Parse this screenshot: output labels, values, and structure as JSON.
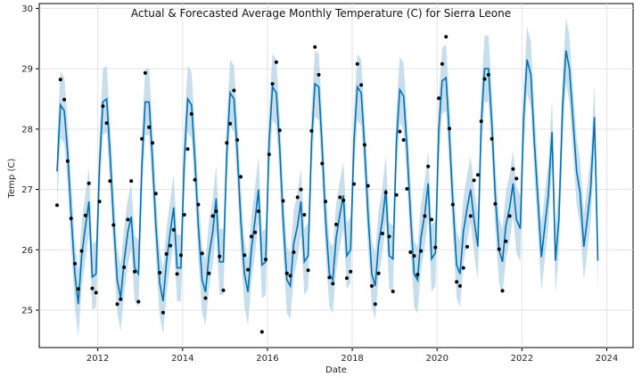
{
  "chart_data": {
    "type": "line",
    "title": "Actual & Forecasted Average Monthly Temperature (C) for Sierra Leone",
    "xlabel": "Date",
    "ylabel": "Temp (C)",
    "xlim": [
      2010.62,
      2024.62
    ],
    "ylim": [
      24.38,
      30.08
    ],
    "x_ticks": [
      2012,
      2014,
      2016,
      2018,
      2020,
      2022,
      2024
    ],
    "y_ticks": [
      25,
      26,
      27,
      28,
      29,
      30
    ],
    "grid": true,
    "colors": {
      "forecast_line": "#0072B2",
      "uncertainty_band": "#B4D3E6",
      "actual_points": "#000000"
    },
    "series": [
      {
        "role": "actual",
        "x": [
          2011.04,
          2011.12,
          2011.21,
          2011.29,
          2011.37,
          2011.46,
          2011.54,
          2011.62,
          2011.71,
          2011.79,
          2011.87,
          2011.96,
          2012.04,
          2012.12,
          2012.21,
          2012.29,
          2012.37,
          2012.46,
          2012.54,
          2012.62,
          2012.71,
          2012.79,
          2012.87,
          2012.96,
          2013.04,
          2013.12,
          2013.21,
          2013.29,
          2013.37,
          2013.46,
          2013.54,
          2013.62,
          2013.71,
          2013.79,
          2013.87,
          2013.96,
          2014.04,
          2014.12,
          2014.21,
          2014.29,
          2014.37,
          2014.46,
          2014.54,
          2014.62,
          2014.71,
          2014.79,
          2014.87,
          2014.96,
          2015.04,
          2015.12,
          2015.21,
          2015.29,
          2015.37,
          2015.46,
          2015.54,
          2015.62,
          2015.71,
          2015.79,
          2015.87,
          2015.96,
          2016.04,
          2016.12,
          2016.21,
          2016.29,
          2016.37,
          2016.46,
          2016.54,
          2016.62,
          2016.71,
          2016.79,
          2016.87,
          2016.96,
          2017.04,
          2017.12,
          2017.21,
          2017.29,
          2017.37,
          2017.46,
          2017.54,
          2017.62,
          2017.71,
          2017.79,
          2017.87,
          2017.96,
          2018.04,
          2018.12,
          2018.21,
          2018.29,
          2018.37,
          2018.46,
          2018.54,
          2018.62,
          2018.71,
          2018.79,
          2018.87,
          2018.96,
          2019.04,
          2019.12,
          2019.21,
          2019.29,
          2019.37,
          2019.46,
          2019.54,
          2019.62,
          2019.71,
          2019.79,
          2019.87,
          2019.96,
          2020.04,
          2020.12,
          2020.21,
          2020.29,
          2020.37,
          2020.46,
          2020.54,
          2020.62,
          2020.71,
          2020.79,
          2020.87,
          2020.96,
          2021.04,
          2021.12,
          2021.21,
          2021.29,
          2021.37,
          2021.46,
          2021.54,
          2021.62,
          2021.71,
          2021.79,
          2021.87,
          2021.96
        ],
        "y": [
          26.74,
          28.82,
          28.49,
          27.47,
          26.52,
          25.77,
          25.35,
          25.98,
          26.57,
          27.1,
          25.36,
          25.29,
          26.8,
          28.38,
          28.1,
          27.14,
          26.41,
          25.1,
          25.18,
          25.71,
          26.5,
          27.14,
          25.64,
          25.14,
          27.84,
          28.93,
          28.03,
          27.77,
          26.93,
          25.62,
          24.96,
          25.93,
          26.07,
          26.33,
          25.6,
          25.91,
          26.58,
          27.67,
          28.25,
          27.16,
          26.75,
          25.94,
          25.2,
          25.61,
          26.56,
          26.64,
          25.89,
          25.33,
          27.77,
          28.09,
          28.64,
          27.82,
          27.21,
          25.91,
          25.67,
          26.22,
          26.29,
          26.64,
          24.64,
          25.84,
          27.58,
          28.75,
          29.11,
          27.98,
          26.81,
          25.61,
          25.57,
          25.96,
          26.87,
          27.0,
          26.58,
          25.66,
          27.97,
          29.36,
          28.9,
          27.43,
          26.8,
          25.54,
          25.44,
          26.42,
          26.87,
          26.82,
          25.53,
          25.64,
          27.09,
          29.08,
          28.73,
          27.74,
          27.06,
          25.4,
          25.1,
          25.61,
          26.27,
          26.95,
          26.22,
          25.31,
          26.91,
          27.96,
          27.82,
          27.01,
          25.96,
          25.9,
          25.59,
          25.98,
          26.56,
          27.38,
          26.5,
          26.04,
          28.51,
          29.08,
          29.53,
          28.01,
          26.75,
          25.47,
          25.4,
          25.7,
          26.05,
          26.56,
          27.15,
          27.24,
          28.13,
          28.83,
          28.9,
          27.84,
          26.76,
          26.01,
          25.32,
          26.14,
          26.56,
          27.34,
          27.18,
          null
        ]
      },
      {
        "role": "forecast",
        "x": [
          2011.04,
          2011.12,
          2011.21,
          2011.29,
          2011.37,
          2011.46,
          2011.54,
          2011.62,
          2011.71,
          2011.79,
          2011.87,
          2011.96,
          2012.04,
          2012.12,
          2012.21,
          2012.29,
          2012.37,
          2012.46,
          2012.54,
          2012.62,
          2012.71,
          2012.79,
          2012.87,
          2012.96,
          2013.04,
          2013.12,
          2013.21,
          2013.29,
          2013.37,
          2013.46,
          2013.54,
          2013.62,
          2013.71,
          2013.79,
          2013.87,
          2013.96,
          2014.04,
          2014.12,
          2014.21,
          2014.29,
          2014.37,
          2014.46,
          2014.54,
          2014.62,
          2014.71,
          2014.79,
          2014.87,
          2014.96,
          2015.04,
          2015.12,
          2015.21,
          2015.29,
          2015.37,
          2015.46,
          2015.54,
          2015.62,
          2015.71,
          2015.79,
          2015.87,
          2015.96,
          2016.04,
          2016.12,
          2016.21,
          2016.29,
          2016.37,
          2016.46,
          2016.54,
          2016.62,
          2016.71,
          2016.79,
          2016.87,
          2016.96,
          2017.04,
          2017.12,
          2017.21,
          2017.29,
          2017.37,
          2017.46,
          2017.54,
          2017.62,
          2017.71,
          2017.79,
          2017.87,
          2017.96,
          2018.04,
          2018.12,
          2018.21,
          2018.29,
          2018.37,
          2018.46,
          2018.54,
          2018.62,
          2018.71,
          2018.79,
          2018.87,
          2018.96,
          2019.04,
          2019.12,
          2019.21,
          2019.29,
          2019.37,
          2019.46,
          2019.54,
          2019.62,
          2019.71,
          2019.79,
          2019.87,
          2019.96,
          2020.04,
          2020.12,
          2020.21,
          2020.29,
          2020.37,
          2020.46,
          2020.54,
          2020.62,
          2020.71,
          2020.79,
          2020.87,
          2020.96,
          2021.04,
          2021.12,
          2021.21,
          2021.29,
          2021.37,
          2021.46,
          2021.54,
          2021.62,
          2021.71,
          2021.79,
          2021.87,
          2021.96,
          2022.04,
          2022.12,
          2022.21,
          2022.29,
          2022.37,
          2022.46,
          2022.54,
          2022.62,
          2022.71,
          2022.79,
          2022.87,
          2022.96,
          2023.04,
          2023.12,
          2023.21,
          2023.29,
          2023.37,
          2023.46,
          2023.54,
          2023.62,
          2023.71,
          2023.79,
          2023.87,
          2023.96
        ],
        "y": [
          27.3,
          28.4,
          28.3,
          27.6,
          26.6,
          25.6,
          25.1,
          25.9,
          26.4,
          26.8,
          25.55,
          25.6,
          27.4,
          28.45,
          28.5,
          27.6,
          26.5,
          25.5,
          25.2,
          25.8,
          26.3,
          26.55,
          25.7,
          25.6,
          27.4,
          28.45,
          28.45,
          27.5,
          26.4,
          25.45,
          25.15,
          25.8,
          26.3,
          26.7,
          25.7,
          25.7,
          27.5,
          28.5,
          28.4,
          27.5,
          26.4,
          25.5,
          25.3,
          25.9,
          26.3,
          26.85,
          25.8,
          25.8,
          27.6,
          28.6,
          28.5,
          27.6,
          26.5,
          25.6,
          25.3,
          26.0,
          26.5,
          27.0,
          25.75,
          25.8,
          27.8,
          28.7,
          28.6,
          27.7,
          26.5,
          25.5,
          25.4,
          26.1,
          26.4,
          26.8,
          25.8,
          25.9,
          27.8,
          28.75,
          28.7,
          27.7,
          26.5,
          25.6,
          25.5,
          26.2,
          26.6,
          26.9,
          25.9,
          26.0,
          27.8,
          28.7,
          28.6,
          27.7,
          26.6,
          25.6,
          25.4,
          26.1,
          26.5,
          27.0,
          25.9,
          25.85,
          27.8,
          28.65,
          28.55,
          27.7,
          26.6,
          25.6,
          25.5,
          26.2,
          26.6,
          27.1,
          25.85,
          25.95,
          28.0,
          28.8,
          28.85,
          27.9,
          26.8,
          25.75,
          25.6,
          26.3,
          26.7,
          27.0,
          26.5,
          26.05,
          28.1,
          29.0,
          29.0,
          28.1,
          26.9,
          26.0,
          25.8,
          26.4,
          26.7,
          27.1,
          26.5,
          26.35,
          28.2,
          29.15,
          28.9,
          27.8,
          26.9,
          25.88,
          26.4,
          26.9,
          27.95,
          25.82,
          26.5,
          28.4,
          29.3,
          29.0,
          28.1,
          27.3,
          26.95,
          26.05,
          26.5,
          27.0,
          28.2,
          25.82,
          null,
          null
        ]
      }
    ],
    "uncertainty_half_width": 0.55
  }
}
